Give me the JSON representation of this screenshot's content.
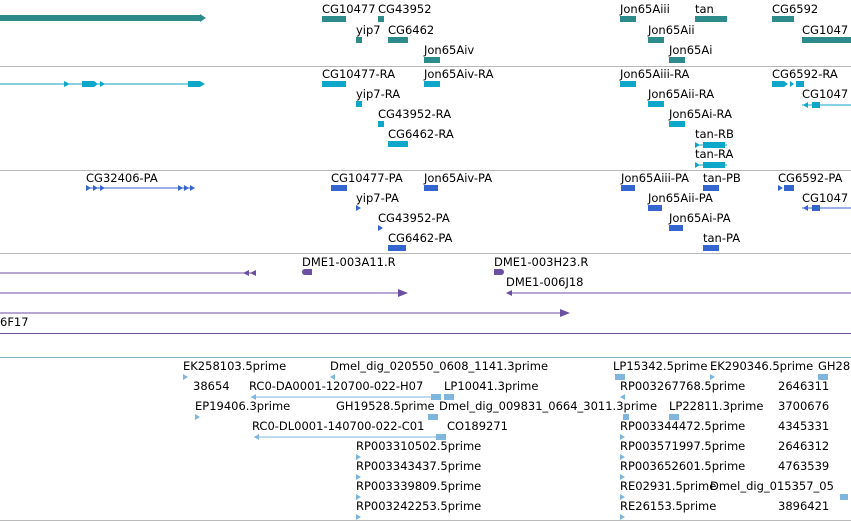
{
  "colors": {
    "gene": "#2e8b8b",
    "transcript": "#0ea6c9",
    "protein": "#3565cf",
    "clone": "#6b4fa3",
    "est": "#7fb6dd",
    "separator": "#b9b9b9"
  },
  "tracks": {
    "gene": {
      "labels": [
        "CG10477",
        "CG43952",
        "yip7",
        "CG6462",
        "Jon65Aiv",
        "Jon65Aiii",
        "tan",
        "CG6592",
        "Jon65Aii",
        "CG1047",
        "Jon65Ai"
      ]
    },
    "transcript": {
      "labels": [
        "CG10477-RA",
        "Jon65Aiv-RA",
        "yip7-RA",
        "CG43952-RA",
        "CG6462-RA",
        "Jon65Aiii-RA",
        "Jon65Aii-RA",
        "Jon65Ai-RA",
        "tan-RB",
        "tan-RA",
        "CG6592-RA",
        "CG1047"
      ]
    },
    "protein": {
      "labels": [
        "CG32406-PA",
        "CG10477-PA",
        "Jon65Aiv-PA",
        "yip7-PA",
        "CG43952-PA",
        "CG6462-PA",
        "Jon65Aiii-PA",
        "Jon65Aii-PA",
        "Jon65Ai-PA",
        "tan-PA",
        "tan-PB",
        "CG6592-PA",
        "CG1047"
      ]
    },
    "clone": {
      "labels": [
        "DME1-003A11.R",
        "DME1-003H23.R",
        "DME1-006J18",
        "6F17"
      ]
    },
    "est": {
      "labels": [
        "EK258103.5prime",
        "Dmel_dig_020550_0608_1141.3prime",
        "LP15342.5prime",
        "EK290346.5prime",
        "GH28",
        "38654",
        "RC0-DA0001-120700-022-H07",
        "LP10041.3prime",
        "RP003267768.5prime",
        "2646311",
        "EP19406.3prime",
        "GH19528.5prime",
        "Dmel_dig_009831_0664_3011.3prime",
        "LP22811.3prime",
        "3700676",
        "RC0-DL0001-140700-022-C01",
        "CO189271",
        "RP003344472.5prime",
        "4345331",
        "RP003310502.5prime",
        "RP003571997.5prime",
        "2646312",
        "RP003343437.5prime",
        "RP003652601.5prime",
        "4763539",
        "RP003339809.5prime",
        "RE02931.5prime",
        "Dmel_dig_015357_05",
        "RP003242253.5prime",
        "RE26153.5prime",
        "3896421"
      ]
    }
  }
}
